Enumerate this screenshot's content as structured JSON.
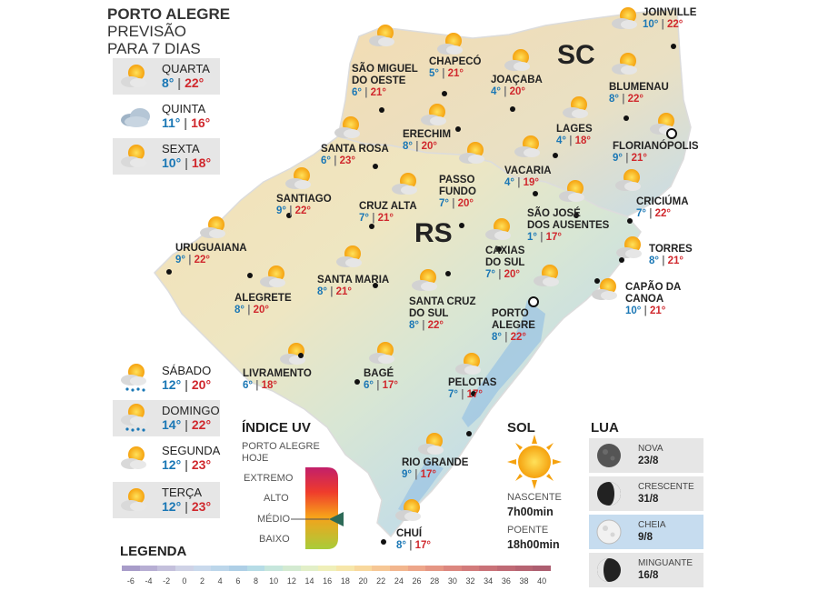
{
  "header": {
    "line1": "PORTO ALEGRE",
    "line2": "PREVISÃO",
    "line3": "PARA 7 DIAS"
  },
  "forecast": [
    {
      "day": "QUARTA",
      "min": "8°",
      "max": "22°",
      "icon": "sun-cloud-icon"
    },
    {
      "day": "QUINTA",
      "min": "11°",
      "max": "16°",
      "icon": "cloud-icon"
    },
    {
      "day": "SEXTA",
      "min": "10°",
      "max": "18°",
      "icon": "sun-cloud-icon"
    },
    {
      "day": "SÁBADO",
      "min": "12°",
      "max": "20°",
      "icon": "sun-cloud-rain-icon"
    },
    {
      "day": "DOMINGO",
      "min": "14°",
      "max": "22°",
      "icon": "sun-cloud-rain-icon"
    },
    {
      "day": "SEGUNDA",
      "min": "12°",
      "max": "23°",
      "icon": "sun-cloud-icon"
    },
    {
      "day": "TERÇA",
      "min": "12°",
      "max": "23°",
      "icon": "sun-cloud-icon"
    }
  ],
  "states": {
    "sc": "SC",
    "rs": "RS"
  },
  "cities": [
    {
      "name": "JOINVILLE",
      "min": "10°",
      "max": "22°"
    },
    {
      "name": "CHAPECÓ",
      "min": "5°",
      "max": "21°"
    },
    {
      "name": "SÃO MIGUEL\nDO OESTE",
      "min": "6°",
      "max": "21°"
    },
    {
      "name": "JOAÇABA",
      "min": "4°",
      "max": "20°"
    },
    {
      "name": "BLUMENAU",
      "min": "8°",
      "max": "22°"
    },
    {
      "name": "LAGES",
      "min": "4°",
      "max": "18°"
    },
    {
      "name": "FLORIANÓPOLIS",
      "min": "9°",
      "max": "21°"
    },
    {
      "name": "SANTA ROSA",
      "min": "6°",
      "max": "23°"
    },
    {
      "name": "ERECHIM",
      "min": "8°",
      "max": "20°"
    },
    {
      "name": "PASSO\nFUNDO",
      "min": "7°",
      "max": "20°"
    },
    {
      "name": "VACARIA",
      "min": "4°",
      "max": "19°"
    },
    {
      "name": "SANTIAGO",
      "min": "9°",
      "max": "22°"
    },
    {
      "name": "CRUZ ALTA",
      "min": "7°",
      "max": "21°"
    },
    {
      "name": "SÃO JOSÉ\nDOS AUSENTES",
      "min": "1°",
      "max": "17°"
    },
    {
      "name": "CRICIÚMA",
      "min": "7°",
      "max": "22°"
    },
    {
      "name": "URUGUAIANA",
      "min": "9°",
      "max": "22°"
    },
    {
      "name": "CAXIAS\nDO SUL",
      "min": "7°",
      "max": "20°"
    },
    {
      "name": "TORRES",
      "min": "8°",
      "max": "21°"
    },
    {
      "name": "ALEGRETE",
      "min": "8°",
      "max": "20°"
    },
    {
      "name": "SANTA MARIA",
      "min": "8°",
      "max": "21°"
    },
    {
      "name": "SANTA CRUZ\nDO SUL",
      "min": "8°",
      "max": "22°"
    },
    {
      "name": "CAPÃO DA\nCANOA",
      "min": "10°",
      "max": "21°"
    },
    {
      "name": "PORTO\nALEGRE",
      "min": "8°",
      "max": "22°"
    },
    {
      "name": "LIVRAMENTO",
      "min": "6°",
      "max": "18°"
    },
    {
      "name": "BAGÉ",
      "min": "6°",
      "max": "17°"
    },
    {
      "name": "PELOTAS",
      "min": "7°",
      "max": "17°"
    },
    {
      "name": "RIO GRANDE",
      "min": "9°",
      "max": "17°"
    },
    {
      "name": "CHUÍ",
      "min": "8°",
      "max": "17°"
    }
  ],
  "uv": {
    "title": "ÍNDICE UV",
    "subtitle1": "PORTO ALEGRE",
    "subtitle2": "HOJE",
    "levels": [
      "EXTREMO",
      "ALTO",
      "MÉDIO",
      "BAIXO"
    ],
    "current_level": "MÉDIO"
  },
  "sun": {
    "title": "SOL",
    "rise_label": "NASCENTE",
    "rise": "7h00min",
    "set_label": "POENTE",
    "set": "18h00min"
  },
  "moon": {
    "title": "LUA",
    "phases": [
      {
        "name": "NOVA",
        "date": "23/8"
      },
      {
        "name": "CRESCENTE",
        "date": "31/8"
      },
      {
        "name": "CHEIA",
        "date": "9/8"
      },
      {
        "name": "MINGUANTE",
        "date": "16/8"
      }
    ]
  },
  "legend": {
    "title": "LEGENDA",
    "ticks": [
      "-6",
      "-4",
      "-2",
      "0",
      "2",
      "4",
      "6",
      "8",
      "10",
      "12",
      "14",
      "16",
      "18",
      "20",
      "22",
      "24",
      "26",
      "28",
      "30",
      "32",
      "34",
      "36",
      "38",
      "40"
    ],
    "colors": [
      "#a89cc9",
      "#b7aed3",
      "#c4c0dc",
      "#cfd2e6",
      "#c9d9ec",
      "#bcd6ea",
      "#aecfe6",
      "#b6dce6",
      "#c6e6dc",
      "#d3ead1",
      "#e2efc8",
      "#efefb9",
      "#f6e6aa",
      "#f8d89d",
      "#f6c795",
      "#f2b68e",
      "#eda68a",
      "#e59684",
      "#dc877f",
      "#d27b7b",
      "#c97278",
      "#bf6a75",
      "#b66472",
      "#ad5e70"
    ]
  }
}
